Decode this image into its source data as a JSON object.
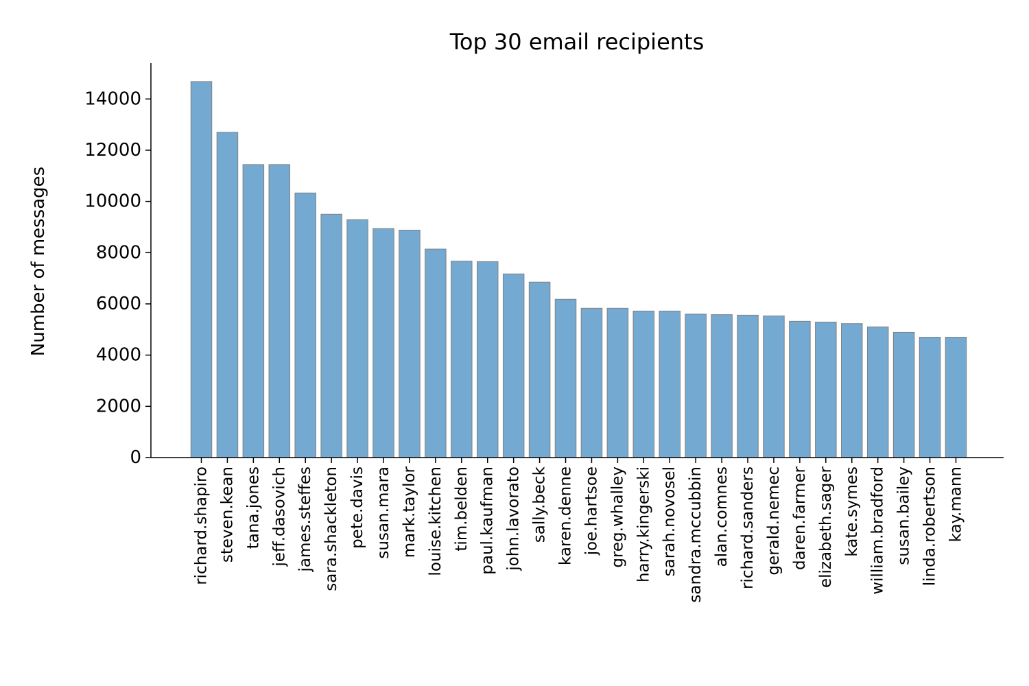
{
  "chart_data": {
    "type": "bar",
    "title": "Top 30 email recipients",
    "xlabel": "",
    "ylabel": "Number of messages",
    "ylim": [
      0,
      15400
    ],
    "yticks": [
      0,
      2000,
      4000,
      6000,
      8000,
      10000,
      12000,
      14000
    ],
    "grid": false,
    "bar_color": "#74aad1",
    "bar_edge_color": "#808080",
    "categories": [
      "richard.shapiro",
      "steven.kean",
      "tana.jones",
      "jeff.dasovich",
      "james.steffes",
      "sara.shackleton",
      "pete.davis",
      "susan.mara",
      "mark.taylor",
      "louise.kitchen",
      "tim.belden",
      "paul.kaufman",
      "john.lavorato",
      "sally.beck",
      "karen.denne",
      "joe.hartsoe",
      "greg.whalley",
      "harry.kingerski",
      "sarah.novosel",
      "sandra.mccubbin",
      "alan.comnes",
      "richard.sanders",
      "gerald.nemec",
      "daren.farmer",
      "elizabeth.sager",
      "kate.symes",
      "william.bradford",
      "susan.bailey",
      "linda.robertson",
      "kay.mann"
    ],
    "values": [
      14680,
      12700,
      11440,
      11440,
      10330,
      9500,
      9290,
      8940,
      8880,
      8140,
      7670,
      7650,
      7170,
      6850,
      6180,
      5830,
      5830,
      5720,
      5720,
      5600,
      5580,
      5560,
      5530,
      5320,
      5290,
      5230,
      5100,
      4890,
      4700,
      4700
    ]
  }
}
